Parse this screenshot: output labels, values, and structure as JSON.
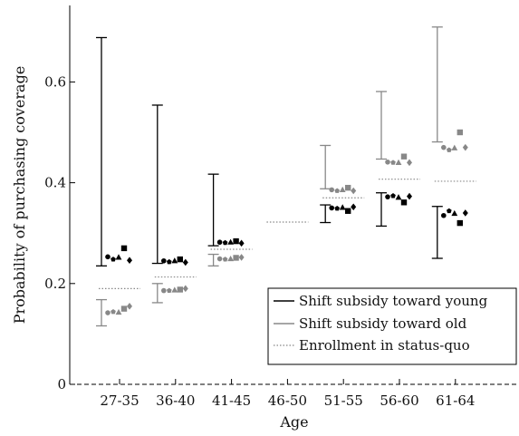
{
  "chart_data": {
    "type": "scatter",
    "ylabel": "Probability of purchasing coverage",
    "xlabel": "Age",
    "ylim": [
      0,
      0.75
    ],
    "yticks": [
      0,
      0.2,
      0.4,
      0.6
    ],
    "ytick_labels": [
      "0",
      "0.2",
      "0.4",
      "0.6"
    ],
    "categories": [
      "27-35",
      "36-40",
      "41-45",
      "46-50",
      "51-55",
      "56-60",
      "61-64"
    ],
    "legend": {
      "placement": "bottom-right",
      "entries": [
        {
          "label": "Shift subsidy toward young",
          "style": "solid",
          "color": "#000000"
        },
        {
          "label": "Shift subsidy toward old",
          "style": "solid",
          "color": "#888888"
        },
        {
          "label": "Enrollment in status-quo",
          "style": "dotted",
          "color": "#888888"
        }
      ]
    },
    "status_quo": [
      0.19,
      0.213,
      0.268,
      0.322,
      0.37,
      0.407,
      0.403
    ],
    "young": {
      "color": "#000000",
      "range": [
        [
          0.235,
          0.688
        ],
        [
          0.24,
          0.554
        ],
        [
          0.275,
          0.417
        ],
        null,
        [
          0.321,
          0.356
        ],
        [
          0.314,
          0.38
        ],
        [
          0.25,
          0.353
        ]
      ],
      "points": [
        [
          0.253,
          0.248,
          0.252,
          0.27,
          0.246
        ],
        [
          0.245,
          0.243,
          0.245,
          0.248,
          0.242
        ],
        [
          0.282,
          0.281,
          0.282,
          0.284,
          0.28
        ],
        null,
        [
          0.35,
          0.349,
          0.351,
          0.344,
          0.352
        ],
        [
          0.372,
          0.374,
          0.371,
          0.361,
          0.373
        ],
        [
          0.335,
          0.344,
          0.339,
          0.32,
          0.34
        ]
      ]
    },
    "old": {
      "color": "#888888",
      "range": [
        [
          0.116,
          0.168
        ],
        [
          0.162,
          0.2
        ],
        [
          0.235,
          0.258
        ],
        null,
        [
          0.388,
          0.474
        ],
        [
          0.447,
          0.581
        ],
        [
          0.481,
          0.709
        ]
      ],
      "points": [
        [
          0.142,
          0.144,
          0.143,
          0.15,
          0.155
        ],
        [
          0.186,
          0.186,
          0.187,
          0.188,
          0.19
        ],
        [
          0.249,
          0.248,
          0.249,
          0.251,
          0.252
        ],
        null,
        [
          0.386,
          0.384,
          0.386,
          0.39,
          0.384
        ],
        [
          0.441,
          0.44,
          0.44,
          0.452,
          0.44
        ],
        [
          0.47,
          0.465,
          0.469,
          0.5,
          0.47
        ]
      ]
    },
    "marker_order": [
      "circle",
      "pentagon",
      "triangle",
      "square",
      "diamond"
    ]
  }
}
